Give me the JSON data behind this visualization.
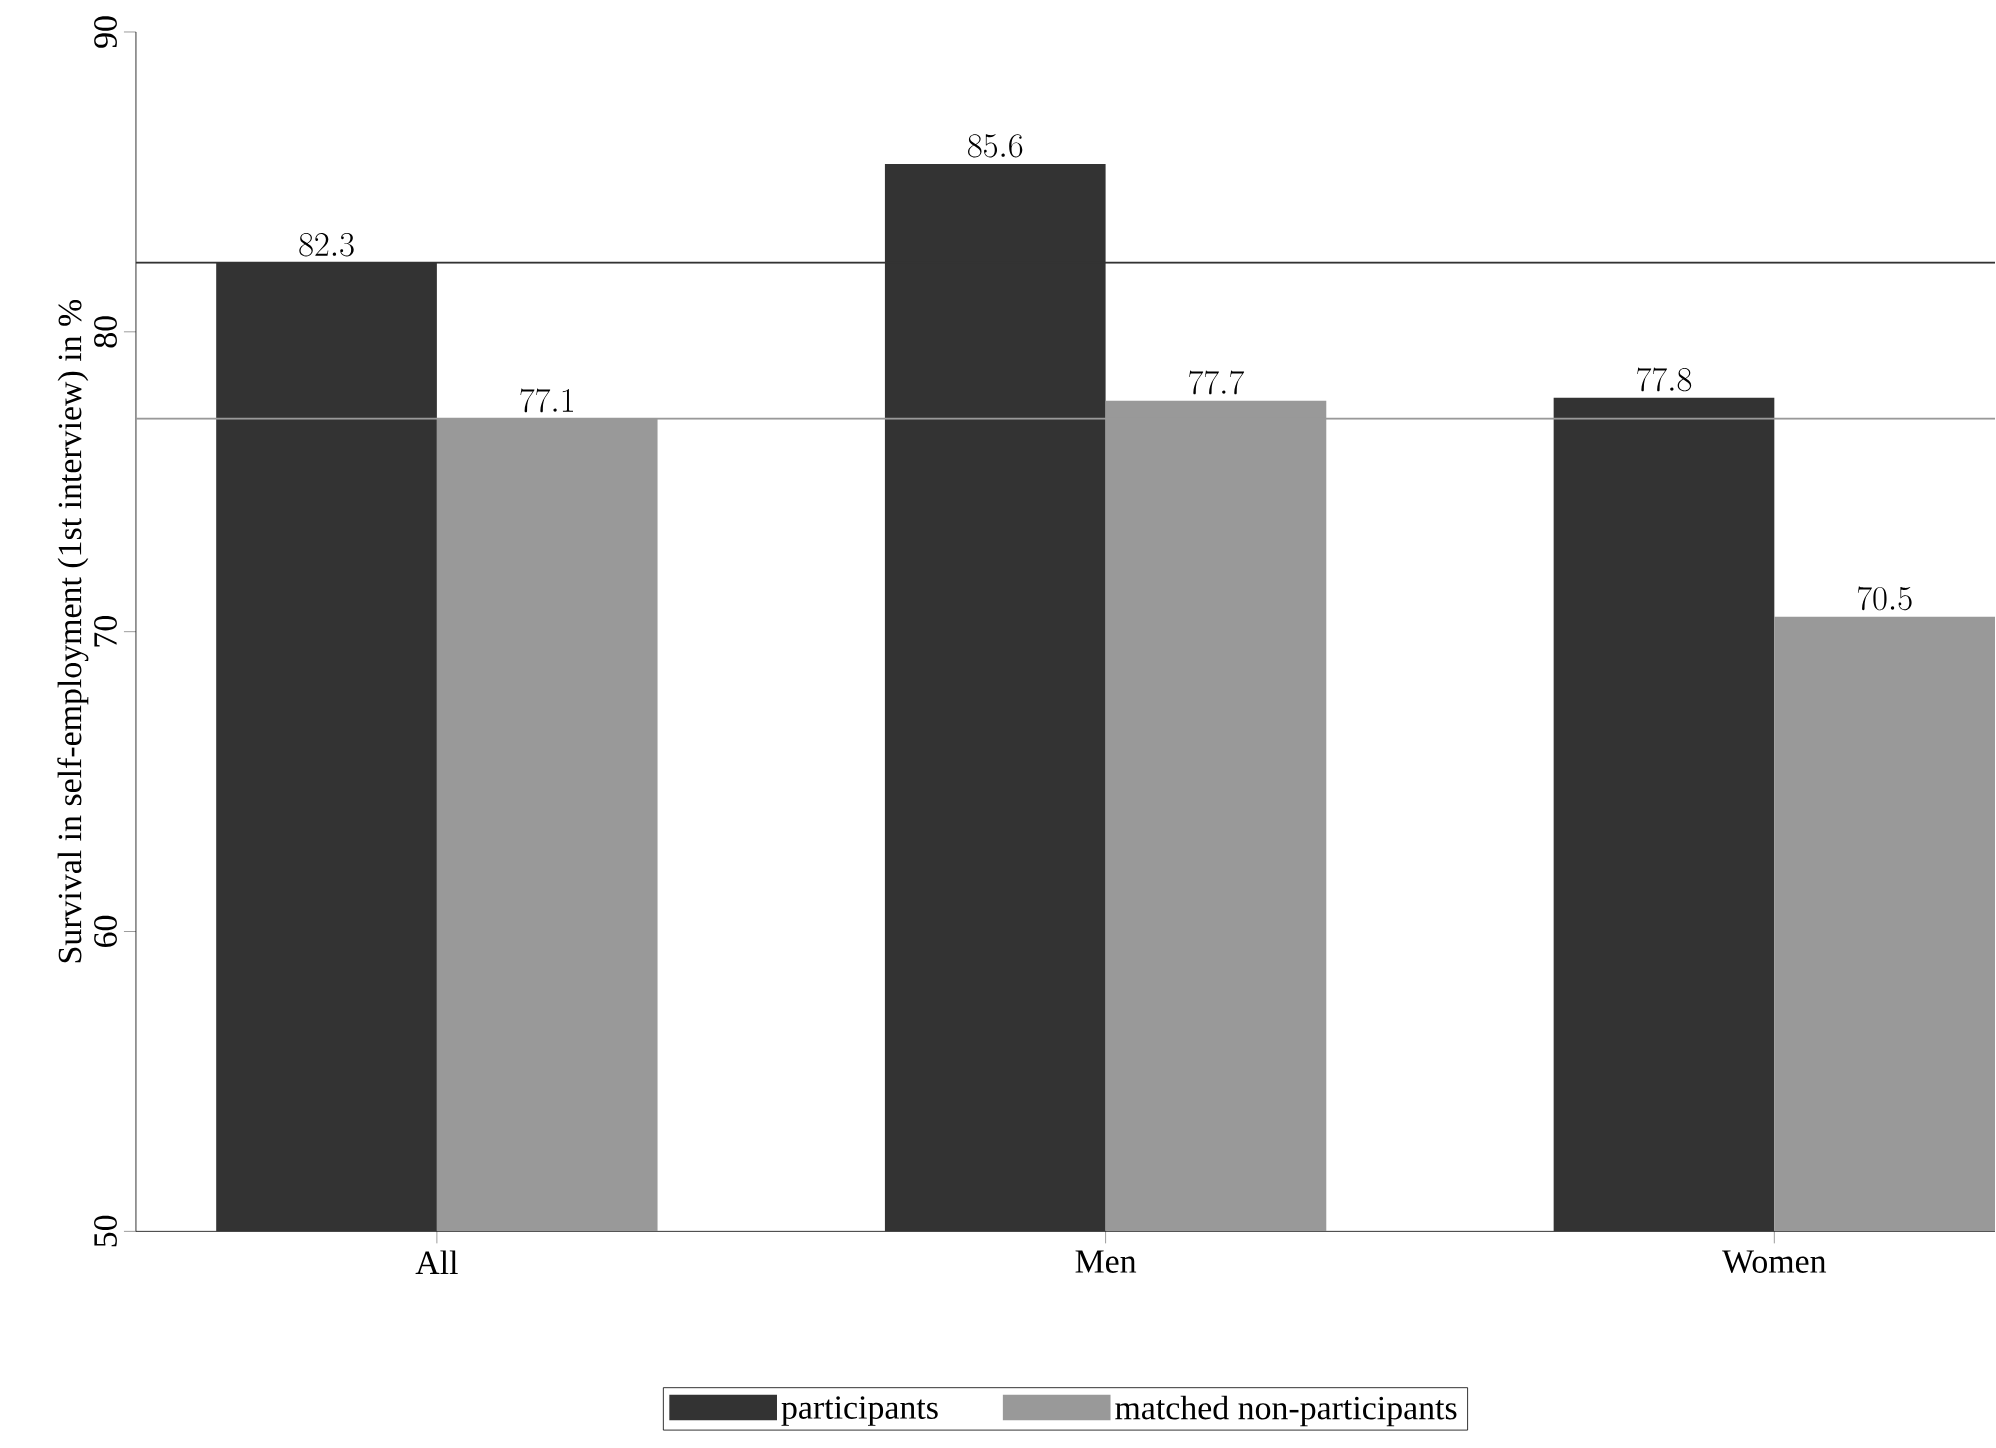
{
  "chart_data": {
    "type": "bar",
    "ylabel": "Survival in self-employment (1st interview) in %",
    "categories": [
      "All",
      "Men",
      "Women"
    ],
    "series": [
      {
        "name": "participants",
        "color": "#333333",
        "values": [
          82.3,
          85.6,
          77.8
        ]
      },
      {
        "name": "matched non-participants",
        "color": "#999999",
        "values": [
          77.1,
          77.7,
          70.5
        ]
      }
    ],
    "ylim": [
      50,
      90
    ],
    "yticks": [
      50,
      60,
      70,
      80,
      90
    ],
    "ref_lines": [
      {
        "axis": "y",
        "value": 82.3,
        "color": "#333333"
      },
      {
        "axis": "y",
        "value": 77.1,
        "color": "#999999"
      }
    ],
    "data_labels": true,
    "legend": "bottom",
    "grid": false
  }
}
